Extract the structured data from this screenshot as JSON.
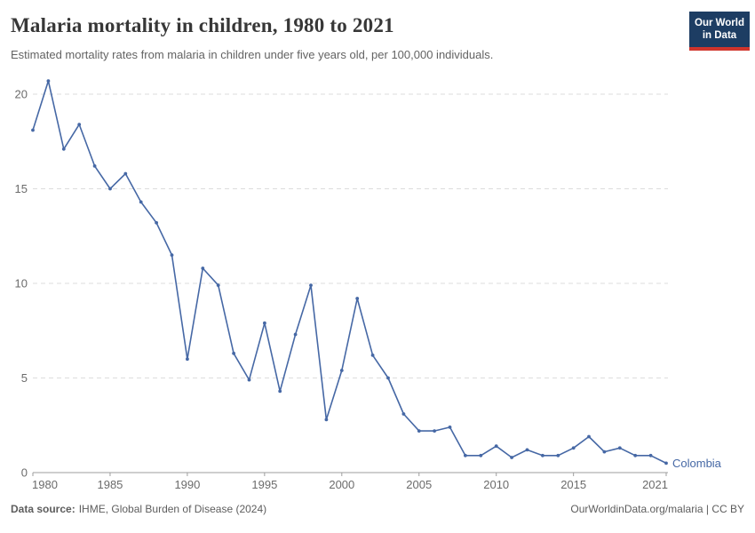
{
  "header": {
    "title": "Malaria mortality in children, 1980 to 2021",
    "subtitle": "Estimated mortality rates from malaria in children under five years old, per 100,000 individuals.",
    "logo": {
      "line1": "Our World",
      "line2": "in Data",
      "bg_color": "#1d3d63",
      "accent_color": "#d0342c"
    }
  },
  "footer": {
    "source_label": "Data source:",
    "source_text": "IHME, Global Burden of Disease (2024)",
    "attribution": "OurWorldinData.org/malaria | CC BY"
  },
  "chart_data": {
    "type": "line",
    "title": "Malaria mortality in children, 1980 to 2021",
    "subtitle": "Estimated mortality rates from malaria in children under five years old, per 100,000 individuals.",
    "x": [
      1980,
      1981,
      1982,
      1983,
      1984,
      1985,
      1986,
      1987,
      1988,
      1989,
      1990,
      1991,
      1992,
      1993,
      1994,
      1995,
      1996,
      1997,
      1998,
      1999,
      2000,
      2001,
      2002,
      2003,
      2004,
      2005,
      2006,
      2007,
      2008,
      2009,
      2010,
      2011,
      2012,
      2013,
      2014,
      2015,
      2016,
      2017,
      2018,
      2019,
      2020,
      2021
    ],
    "series": [
      {
        "name": "Colombia",
        "values": [
          18.1,
          20.7,
          17.1,
          18.4,
          16.2,
          15.0,
          15.8,
          14.3,
          13.2,
          11.5,
          6.0,
          10.8,
          9.9,
          6.3,
          4.9,
          7.9,
          4.3,
          7.3,
          9.9,
          2.8,
          5.4,
          9.2,
          6.2,
          5.0,
          3.1,
          2.2,
          2.2,
          2.4,
          0.9,
          0.9,
          1.4,
          0.8,
          1.2,
          0.9,
          0.9,
          1.3,
          1.9,
          1.1,
          1.3,
          0.9,
          0.9,
          0.5
        ]
      }
    ],
    "x_ticks": [
      1980,
      1985,
      1990,
      1995,
      2000,
      2005,
      2010,
      2015,
      2021
    ],
    "y_ticks": [
      0,
      5,
      10,
      15,
      20
    ],
    "xlim": [
      1980,
      2021
    ],
    "ylim": [
      0,
      20
    ],
    "grid": "horizontal-dashed",
    "legend_position": "end-of-line-label",
    "colors": {
      "line": "#4668a5",
      "grid": "#dddddd",
      "axis": "#9e9e9e",
      "tick_label": "#6b6b6b"
    }
  }
}
